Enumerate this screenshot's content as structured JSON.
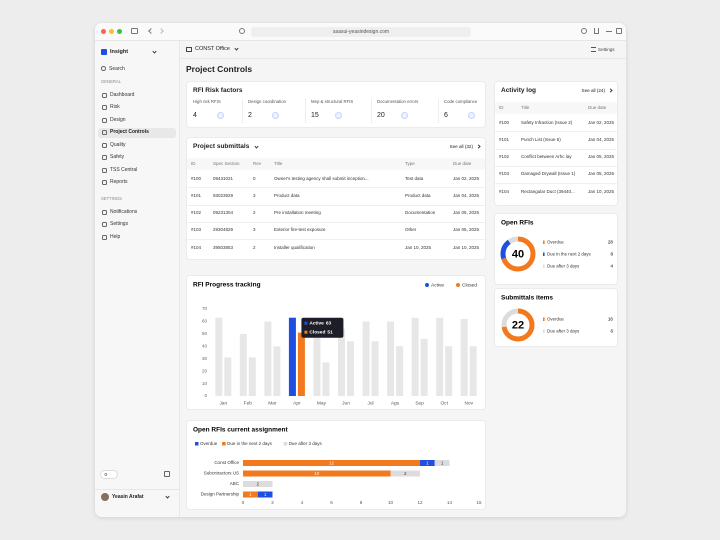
{
  "browser": {
    "url": "saasui-yeasindesign.com"
  },
  "sidebar": {
    "brand": "Insight",
    "search": "Search",
    "general_heading": "GENERAL",
    "general_items": [
      "Dashboard",
      "Risk",
      "Design",
      "Project Controls",
      "Quality",
      "Safety",
      "TSS Central",
      "Reports"
    ],
    "active_item": 3,
    "settings_heading": "SETTINGS",
    "settings_items": [
      "Notifications",
      "Settings",
      "Help"
    ],
    "toggle": "0",
    "user": "Yeasin Arafat"
  },
  "header": {
    "project": "CONST Office",
    "settings": "Settings",
    "title": "Project Controls"
  },
  "risk_factors": {
    "title": "RFI Risk factors",
    "items": [
      {
        "label": "High risk RFIS",
        "value": 4
      },
      {
        "label": "Design coordination",
        "value": 2
      },
      {
        "label": "Mep & structural RFIS",
        "value": 15
      },
      {
        "label": "Documentation errors",
        "value": 20
      },
      {
        "label": "Code compliance",
        "value": 6
      }
    ]
  },
  "submittals": {
    "title": "Project submittals",
    "see_all": "See all (32)",
    "columns": [
      "ID",
      "Spec Section",
      "Rev",
      "Title",
      "Type",
      "Due date"
    ],
    "rows": [
      [
        "#100",
        "09431021",
        "0",
        "Owner's testing agency shall submit inception...",
        "Test data",
        "Jan 02, 2025"
      ],
      [
        "#101",
        "93023929",
        "3",
        "Product data",
        "Product data",
        "Jan 04, 2025"
      ],
      [
        "#102",
        "09231304",
        "2",
        "Pre installation meeting",
        "Documentation",
        "Jan 05, 2025"
      ],
      [
        "#103",
        "29304829",
        "3",
        "Exterior fire-test exposure",
        "Other",
        "Jan 05, 2025"
      ],
      [
        "#104",
        "39503853",
        "2",
        "Installer qualification",
        "Jan 10, 2025",
        "Jan 10, 2025"
      ]
    ]
  },
  "activity_log": {
    "title": "Activity log",
    "see_all": "See all (24)",
    "columns": [
      "ID",
      "Title",
      "Due date"
    ],
    "rows": [
      [
        "#100",
        "Safety Infraction (Issue 2)",
        "Jan 02, 2025"
      ],
      [
        "#101",
        "Punch List (Issue 6)",
        "Jan 04, 2025"
      ],
      [
        "#102",
        "Conflict between Arhc lay",
        "Jan 05, 2025"
      ],
      [
        "#103",
        "Damaged Drywall (Issue 1)",
        "Jan 05, 2025"
      ],
      [
        "#104",
        "Rectangular Duct (39440...",
        "Jan 10, 2025"
      ]
    ]
  },
  "chart_data": [
    {
      "type": "bar",
      "title": "RFI Progress tracking",
      "categories": [
        "Jan",
        "Feb",
        "Mar",
        "Apr",
        "May",
        "Jun",
        "Jul",
        "Agu",
        "Sep",
        "Oct",
        "Nov"
      ],
      "series": [
        {
          "name": "Active",
          "color": "#1f4fe0",
          "values": [
            63,
            50,
            60,
            63,
            58,
            54,
            60,
            60,
            63,
            63,
            62
          ]
        },
        {
          "name": "Closed",
          "color": "#f2791d",
          "values": [
            31,
            31,
            40,
            51,
            27,
            44,
            44,
            40,
            46,
            40,
            40
          ]
        }
      ],
      "highlight": 3,
      "muted_color": "#e7e7e7",
      "ylim": [
        0,
        70
      ],
      "yticks": [
        0,
        10,
        20,
        30,
        40,
        50,
        60,
        70
      ],
      "legend": "top-right"
    },
    {
      "type": "stacked_barh",
      "title": "Open RFIs current assignment",
      "categories": [
        "Const Office",
        "Subcntractors US",
        "ABC",
        "Design Partnership"
      ],
      "series": [
        {
          "name": "Overdue",
          "color": "#1f4fe0",
          "values": [
            1,
            0,
            0,
            1
          ]
        },
        {
          "name": "Due in the next 2 days",
          "color": "#f2791d",
          "values": [
            12,
            10,
            0,
            1
          ]
        },
        {
          "name": "Due after 3 days",
          "color": "#dcdcdc",
          "values": [
            1,
            2,
            2,
            0
          ]
        }
      ],
      "xlim": [
        0,
        16
      ],
      "xticks": [
        0,
        2,
        4,
        6,
        8,
        10,
        12,
        14,
        16
      ],
      "legend": "top-left"
    },
    {
      "type": "donut",
      "title": "Open RFIs",
      "total": 40,
      "categories": [
        "Overdue",
        "Due in the next 2 days",
        "Due after 3 days"
      ],
      "values": [
        28,
        8,
        4
      ],
      "colors": [
        "#f2791d",
        "#1f4fe0",
        "#dcdcdc"
      ]
    },
    {
      "type": "donut",
      "title": "Submittals items",
      "total": 22,
      "categories": [
        "Overdue",
        "Due after 3 days"
      ],
      "values": [
        16,
        6
      ],
      "colors": [
        "#f2791d",
        "#dcdcdc"
      ]
    }
  ]
}
